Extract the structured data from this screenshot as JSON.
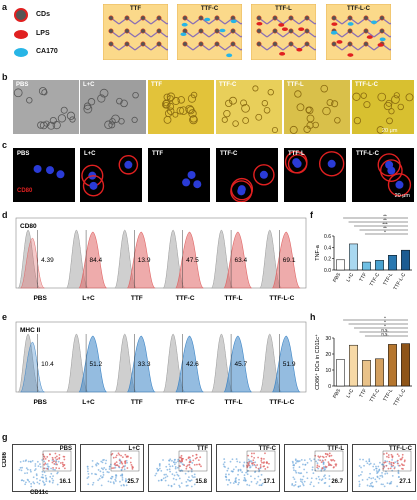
{
  "panels": {
    "a": "a",
    "b": "b",
    "c": "c",
    "d": "d",
    "e": "e",
    "f": "f",
    "g": "g",
    "h": "h"
  },
  "legend_a": [
    {
      "label": "CDs",
      "color": "#555555"
    },
    {
      "label": "LPS",
      "color": "#e02020"
    },
    {
      "label": "CA170",
      "color": "#27b5e6"
    }
  ],
  "groups_a": [
    "TTF",
    "TTF-C",
    "TTF-L",
    "TTF-L-C"
  ],
  "micro_b": {
    "labels": [
      "PBS",
      "L+C",
      "TTF",
      "TTF-C",
      "TTF-L",
      "TTF-L-C"
    ],
    "scale": "20 μm"
  },
  "conf_c": {
    "labels": [
      "PBS",
      "L+C",
      "TTF",
      "TTF-C",
      "TTF-L",
      "TTF-L-C"
    ],
    "marker": "CD80",
    "scale": "20 μm"
  },
  "hist_d": {
    "marker": "CD80",
    "labels": [
      "PBS",
      "L+C",
      "TTF",
      "TTF-C",
      "TTF-L",
      "TTF-L-C"
    ],
    "values": [
      "4.39",
      "84.4",
      "13.9",
      "47.5",
      "63.4",
      "69.1"
    ],
    "color": "#e06666"
  },
  "hist_e": {
    "marker": "MHC II",
    "labels": [
      "PBS",
      "L+C",
      "TTF",
      "TTF-C",
      "TTF-L",
      "TTF-L-C"
    ],
    "values": [
      "10.4",
      "51.2",
      "33.3",
      "42.6",
      "45.7",
      "51.9"
    ],
    "color": "#3d85c6"
  },
  "chart_data": [
    {
      "type": "bar",
      "ylabel": "TNF-a",
      "categories": [
        "PBS",
        "L+C",
        "TTF",
        "TTF-C",
        "TTF-L",
        "TTF-L-C"
      ],
      "values": [
        0.18,
        0.46,
        0.14,
        0.17,
        0.26,
        0.35
      ],
      "ylim": [
        0,
        0.6
      ],
      "yticks": [
        "0.0",
        "0.2",
        "0.4",
        "0.6"
      ],
      "colors": [
        "#ffffff",
        "#a9d8f0",
        "#6fbfe3",
        "#4aa3d1",
        "#2a78b0",
        "#1c5c92"
      ],
      "sig": [
        "**",
        "**",
        "***",
        "**",
        "*"
      ]
    },
    {
      "type": "bar",
      "ylabel": "CD86⁺ DCs in CD11c⁺",
      "categories": [
        "PBS",
        "L+C",
        "TTF",
        "TTF-C",
        "TTF-L",
        "TTF-L-C"
      ],
      "values": [
        16.5,
        25.5,
        16.0,
        17.0,
        26.0,
        26.5
      ],
      "ylim": [
        0,
        30
      ],
      "yticks": [
        "0",
        "10",
        "20",
        "30"
      ],
      "colors": [
        "#ffffff",
        "#f7d9a6",
        "#e9c289",
        "#d4a05f",
        "#b5762e",
        "#8e5418"
      ],
      "sig": [
        "*",
        "*",
        "*",
        "n.s.",
        "n.s."
      ]
    }
  ],
  "scatter_g": {
    "yaxis": "CD86",
    "xaxis": "CD11c",
    "labels": [
      "PBS",
      "L+C",
      "TTF",
      "TTF-C",
      "TTF-L",
      "TTF-L-C"
    ],
    "values": [
      "16.1",
      "25.7",
      "15.8",
      "17.1",
      "26.7",
      "27.1"
    ]
  }
}
